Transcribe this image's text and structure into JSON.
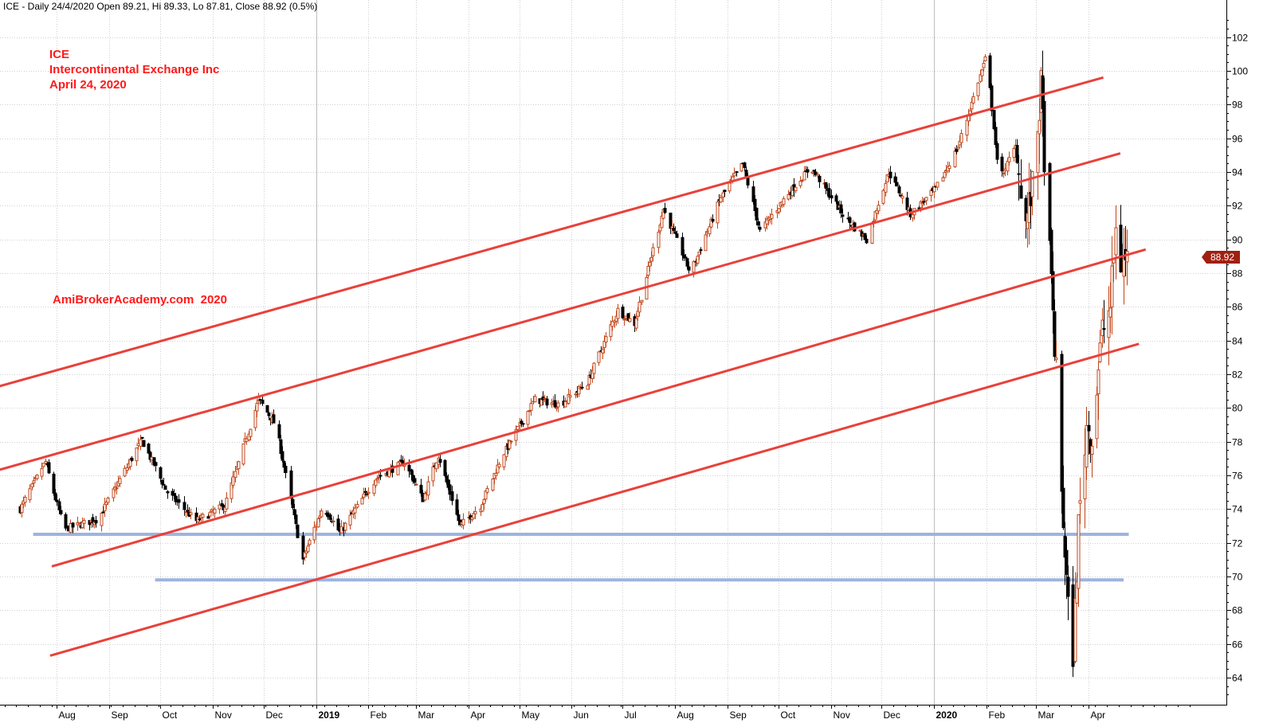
{
  "header": {
    "text": "ICE - Daily 24/4/2020 Open 89.21, Hi 89.33, Lo 87.81, Close 88.92 (0.5%)"
  },
  "annotations": {
    "symbol": "ICE",
    "company": "Intercontinental Exchange Inc",
    "date": "April 24, 2020",
    "watermark": "AmiBrokerAcademy.com  2020"
  },
  "price_tag": {
    "label": "88.92",
    "color": "#a0200f"
  },
  "colors": {
    "channel": "#e8413a",
    "support": "#9db4de",
    "annotation": "#ff1a1a",
    "candle_up": "#c0461a",
    "candle_down": "#000000",
    "grid": "#d0d0d0"
  },
  "chart_data": {
    "type": "candlestick",
    "title": "ICE - Daily 24/4/2020 Open 89.21, Hi 89.33, Lo 87.81, Close 88.92 (0.5%)",
    "last_bar": {
      "date": "24/4/2020",
      "open": 89.21,
      "high": 89.33,
      "low": 87.81,
      "close": 88.92,
      "change_pct": 0.5
    },
    "y_axis": {
      "ticks": [
        64,
        66,
        68,
        70,
        72,
        74,
        76,
        78,
        80,
        82,
        84,
        86,
        88,
        90,
        92,
        94,
        96,
        98,
        100,
        102
      ],
      "range": [
        62.6,
        104.2
      ],
      "side": "right"
    },
    "x_axis": {
      "labels": [
        {
          "label": "Aug",
          "date": "2018-08-01",
          "bold": false
        },
        {
          "label": "Sep",
          "date": "2018-09-01",
          "bold": false
        },
        {
          "label": "Oct",
          "date": "2018-10-01",
          "bold": false
        },
        {
          "label": "Nov",
          "date": "2018-11-01",
          "bold": false
        },
        {
          "label": "Dec",
          "date": "2018-12-01",
          "bold": false
        },
        {
          "label": "2019",
          "date": "2019-01-01",
          "bold": true
        },
        {
          "label": "Feb",
          "date": "2019-02-01",
          "bold": false
        },
        {
          "label": "Mar",
          "date": "2019-03-01",
          "bold": false
        },
        {
          "label": "Apr",
          "date": "2019-04-01",
          "bold": false
        },
        {
          "label": "May",
          "date": "2019-05-01",
          "bold": false
        },
        {
          "label": "Jun",
          "date": "2019-06-01",
          "bold": false
        },
        {
          "label": "Jul",
          "date": "2019-07-01",
          "bold": false
        },
        {
          "label": "Aug",
          "date": "2019-08-01",
          "bold": false
        },
        {
          "label": "Sep",
          "date": "2019-09-01",
          "bold": false
        },
        {
          "label": "Oct",
          "date": "2019-10-01",
          "bold": false
        },
        {
          "label": "Nov",
          "date": "2019-11-01",
          "bold": false
        },
        {
          "label": "Dec",
          "date": "2019-12-01",
          "bold": false
        },
        {
          "label": "2020",
          "date": "2020-01-01",
          "bold": true
        },
        {
          "label": "Feb",
          "date": "2020-02-01",
          "bold": false
        },
        {
          "label": "Mar",
          "date": "2020-03-01",
          "bold": false
        },
        {
          "label": "Apr",
          "date": "2020-04-01",
          "bold": false
        }
      ]
    },
    "key_points": [
      {
        "date": "2018-07-10",
        "price": 74.0
      },
      {
        "date": "2018-07-25",
        "price": 76.8
      },
      {
        "date": "2018-08-05",
        "price": 72.8
      },
      {
        "date": "2018-08-25",
        "price": 73.4
      },
      {
        "date": "2018-09-20",
        "price": 78.1
      },
      {
        "date": "2018-10-05",
        "price": 75.0
      },
      {
        "date": "2018-10-22",
        "price": 73.3
      },
      {
        "date": "2018-11-08",
        "price": 74.2
      },
      {
        "date": "2018-11-28",
        "price": 80.5
      },
      {
        "date": "2018-12-08",
        "price": 79.0
      },
      {
        "date": "2018-12-24",
        "price": 71.0
      },
      {
        "date": "2019-01-05",
        "price": 74.2
      },
      {
        "date": "2019-01-15",
        "price": 72.6
      },
      {
        "date": "2019-02-05",
        "price": 75.8
      },
      {
        "date": "2019-02-22",
        "price": 76.8
      },
      {
        "date": "2019-03-05",
        "price": 74.6
      },
      {
        "date": "2019-03-14",
        "price": 77.2
      },
      {
        "date": "2019-03-27",
        "price": 73.0
      },
      {
        "date": "2019-04-08",
        "price": 74.2
      },
      {
        "date": "2019-04-20",
        "price": 77.0
      },
      {
        "date": "2019-05-10",
        "price": 80.5
      },
      {
        "date": "2019-05-25",
        "price": 80.2
      },
      {
        "date": "2019-06-10",
        "price": 81.5
      },
      {
        "date": "2019-06-28",
        "price": 85.8
      },
      {
        "date": "2019-07-08",
        "price": 85.0
      },
      {
        "date": "2019-07-25",
        "price": 91.8
      },
      {
        "date": "2019-08-10",
        "price": 88.0
      },
      {
        "date": "2019-08-28",
        "price": 92.5
      },
      {
        "date": "2019-09-10",
        "price": 94.5
      },
      {
        "date": "2019-09-20",
        "price": 90.5
      },
      {
        "date": "2019-10-05",
        "price": 92.5
      },
      {
        "date": "2019-10-20",
        "price": 94.3
      },
      {
        "date": "2019-11-10",
        "price": 91.2
      },
      {
        "date": "2019-11-22",
        "price": 90.0
      },
      {
        "date": "2019-12-05",
        "price": 94.0
      },
      {
        "date": "2019-12-18",
        "price": 91.5
      },
      {
        "date": "2020-01-02",
        "price": 93.0
      },
      {
        "date": "2020-01-15",
        "price": 95.5
      },
      {
        "date": "2020-02-01",
        "price": 101.0
      },
      {
        "date": "2020-02-08",
        "price": 93.5
      },
      {
        "date": "2020-02-18",
        "price": 95.5
      },
      {
        "date": "2020-02-24",
        "price": 91.0
      },
      {
        "date": "2020-02-28",
        "price": 93.0
      },
      {
        "date": "2020-03-04",
        "price": 99.0
      },
      {
        "date": "2020-03-09",
        "price": 89.0
      },
      {
        "date": "2020-03-13",
        "price": 82.0
      },
      {
        "date": "2020-03-16",
        "price": 75.0
      },
      {
        "date": "2020-03-20",
        "price": 68.0
      },
      {
        "date": "2020-03-23",
        "price": 65.5
      },
      {
        "date": "2020-03-26",
        "price": 73.0
      },
      {
        "date": "2020-03-31",
        "price": 79.0
      },
      {
        "date": "2020-04-03",
        "price": 78.0
      },
      {
        "date": "2020-04-09",
        "price": 84.5
      },
      {
        "date": "2020-04-14",
        "price": 86.0
      },
      {
        "date": "2020-04-17",
        "price": 90.5
      },
      {
        "date": "2020-04-20",
        "price": 88.5
      },
      {
        "date": "2020-04-24",
        "price": 88.92
      }
    ],
    "trend_lines": [
      {
        "name": "channel-upper",
        "kind": "channel",
        "p1": {
          "date": "2018-06-25",
          "price": 81.2
        },
        "p2": {
          "date": "2020-04-10",
          "price": 99.6
        }
      },
      {
        "name": "channel-mid-upper",
        "kind": "channel",
        "p1": {
          "date": "2018-06-27",
          "price": 76.3
        },
        "p2": {
          "date": "2020-04-20",
          "price": 95.1
        }
      },
      {
        "name": "channel-mid-lower",
        "kind": "channel",
        "p1": {
          "date": "2018-07-29",
          "price": 70.6
        },
        "p2": {
          "date": "2020-05-05",
          "price": 89.4
        }
      },
      {
        "name": "channel-lower",
        "kind": "channel",
        "p1": {
          "date": "2018-07-28",
          "price": 65.3
        },
        "p2": {
          "date": "2020-05-01",
          "price": 83.8
        }
      },
      {
        "name": "support-72.5",
        "kind": "support",
        "p1": {
          "date": "2018-07-18",
          "price": 72.5
        },
        "p2": {
          "date": "2020-04-25",
          "price": 72.5
        }
      },
      {
        "name": "support-69.8",
        "kind": "support",
        "p1": {
          "date": "2018-09-28",
          "price": 69.8
        },
        "p2": {
          "date": "2020-04-22",
          "price": 69.8
        }
      }
    ]
  }
}
